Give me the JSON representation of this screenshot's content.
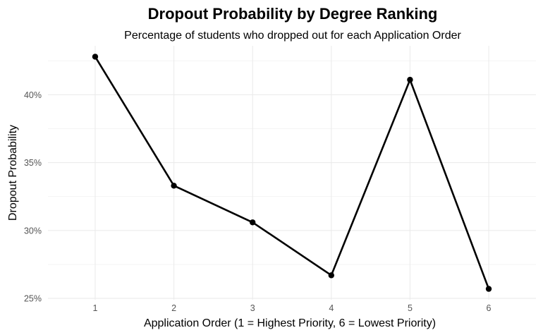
{
  "chart_data": {
    "type": "line",
    "title": "Dropout Probability by Degree Ranking",
    "subtitle": "Percentage of students who dropped out for each Application Order",
    "xlabel": "Application Order (1 = Highest Priority, 6 = Lowest Priority)",
    "ylabel": "Dropout Probability",
    "x": [
      1,
      2,
      3,
      4,
      5,
      6
    ],
    "values": [
      42.8,
      33.3,
      30.6,
      26.7,
      41.1,
      25.7
    ],
    "xticks": [
      "1",
      "2",
      "3",
      "4",
      "5",
      "6"
    ],
    "yticks": [
      {
        "value": 25,
        "label": "25%"
      },
      {
        "value": 30,
        "label": "30%"
      },
      {
        "value": 35,
        "label": "35%"
      },
      {
        "value": 40,
        "label": "40%"
      }
    ],
    "xlim": [
      0.4,
      6.6
    ],
    "ylim": [
      24.9,
      43.6
    ],
    "grid": true,
    "line_color": "#000000",
    "point_color": "#000000"
  }
}
